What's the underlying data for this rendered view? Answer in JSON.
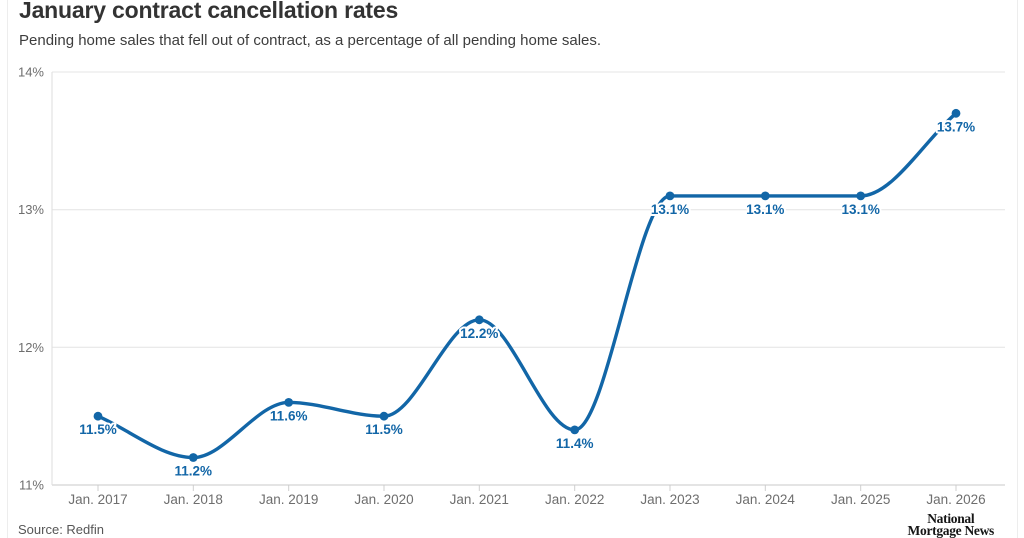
{
  "header": {
    "title": "January contract cancellation rates",
    "subtitle": "Pending home sales that fell out of contract, as a percentage of all pending home sales."
  },
  "chart_data": {
    "type": "line",
    "title": "January contract cancellation rates",
    "subtitle": "Pending home sales that fell out of contract, as a percentage of all pending home sales.",
    "categories": [
      "Jan. 2017",
      "Jan. 2018",
      "Jan. 2019",
      "Jan. 2020",
      "Jan. 2021",
      "Jan. 2022",
      "Jan. 2023",
      "Jan. 2024",
      "Jan. 2025",
      "Jan. 2026"
    ],
    "values": [
      11.5,
      11.2,
      11.6,
      11.5,
      12.2,
      11.4,
      13.1,
      13.1,
      13.1,
      13.7
    ],
    "point_labels": [
      "11.5%",
      "11.2%",
      "11.6%",
      "11.5%",
      "12.2%",
      "11.4%",
      "13.1%",
      "13.1%",
      "13.1%",
      "13.7%"
    ],
    "xlabel": "",
    "ylabel": "",
    "ylim": [
      11,
      14
    ],
    "y_ticks": [
      {
        "value": 14,
        "label": "14%"
      },
      {
        "value": 13,
        "label": "13%"
      },
      {
        "value": 12,
        "label": "12%"
      },
      {
        "value": 11,
        "label": "11%"
      }
    ],
    "grid": "horizontal",
    "legend": "none",
    "interpolation": "smooth-monotone",
    "colors": {
      "line": "#1266a7",
      "point": "#1266a7",
      "data_label": "#1266a7"
    }
  },
  "footer": {
    "source": "Source: Redfin",
    "logo": {
      "line1": "National",
      "line2": "Mortgage News"
    }
  }
}
